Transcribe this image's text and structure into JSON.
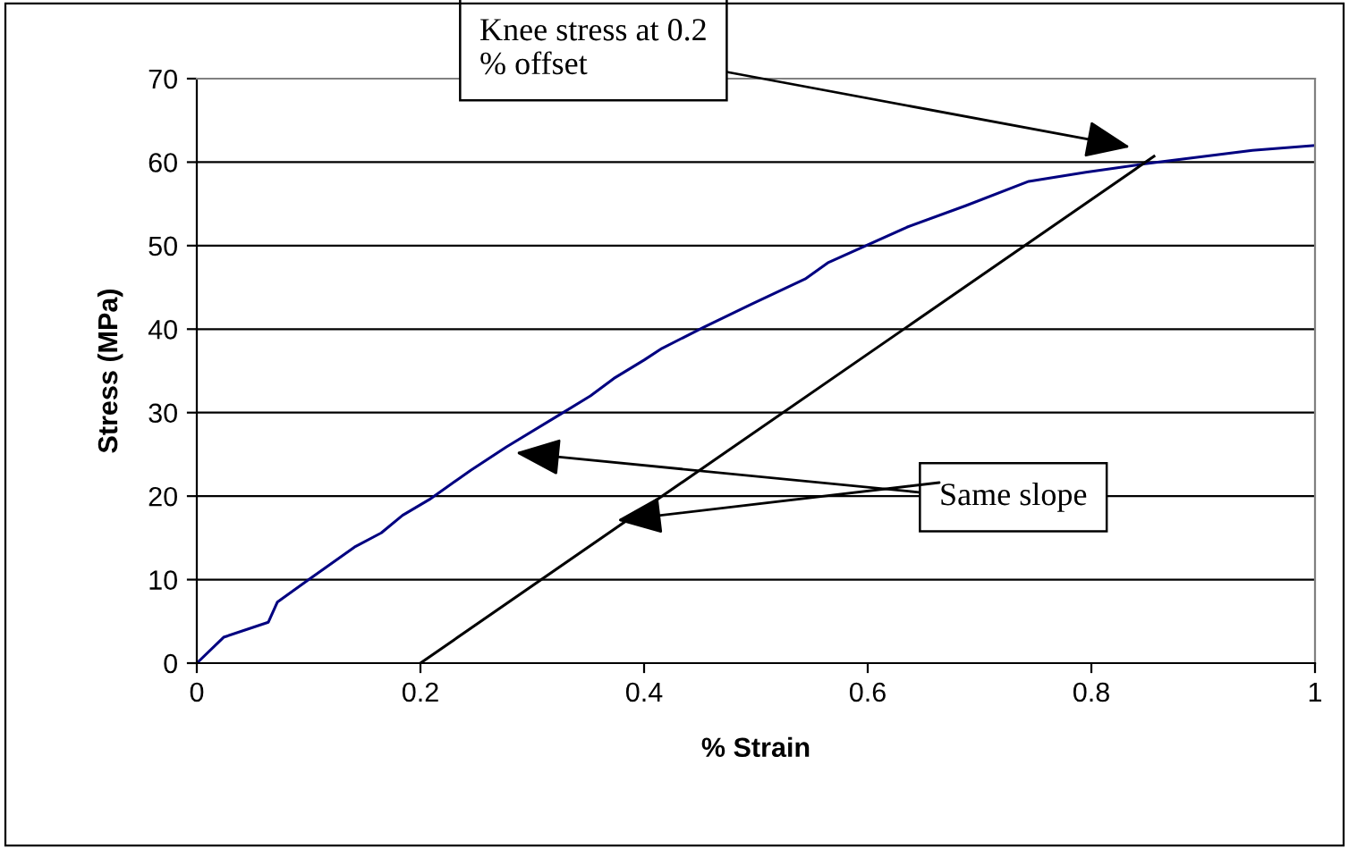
{
  "chart_data": {
    "type": "line",
    "xlabel": "% Strain",
    "ylabel": "Stress (MPa)",
    "xlim": [
      0,
      1
    ],
    "xticks": [
      0,
      0.2,
      0.4,
      0.6,
      0.8,
      1
    ],
    "ylim": [
      0,
      70
    ],
    "yticks": [
      0,
      10,
      20,
      30,
      40,
      50,
      60,
      70
    ],
    "grid": "y",
    "marker": "none",
    "line_style": "solid",
    "series": [
      {
        "color": "#000080",
        "x": [
          0,
          0.024,
          0.064,
          0.072,
          0.099,
          0.141,
          0.165,
          0.184,
          0.208,
          0.245,
          0.277,
          0.325,
          0.352,
          0.373,
          0.4,
          0.416,
          0.453,
          0.496,
          0.544,
          0.565,
          0.635,
          0.688,
          0.744,
          0.795,
          0.848,
          0.944,
          1
        ],
        "values": [
          0,
          3.1,
          4.9,
          7.3,
          9.9,
          13.9,
          15.6,
          17.7,
          19.6,
          23.1,
          25.9,
          29.8,
          32.0,
          34.1,
          36.3,
          37.7,
          40.2,
          43.0,
          46.0,
          48.0,
          52.2,
          54.8,
          57.7,
          58.8,
          59.8,
          61.4,
          62
        ]
      },
      {
        "color": "#000000",
        "x": [
          0.2,
          0.856
        ],
        "values": [
          0,
          60.7
        ]
      }
    ],
    "annotations": [
      "Knee stress at 0.2\n% offset",
      {
        "text": "Same slope",
        "x": 0.376,
        "y": 17.1
      }
    ]
  }
}
